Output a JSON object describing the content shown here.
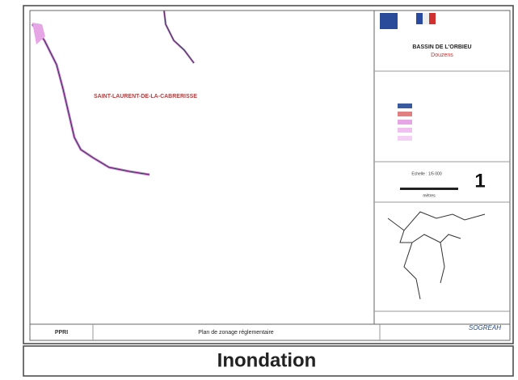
{
  "header": {
    "title": "BASSIN DE L'ORBIEU",
    "subtitle": "Douzens"
  },
  "map": {
    "place_label": "SAINT-LAURENT-DE-LA-CABRERISSE"
  },
  "scale": {
    "label": "Echelle : 1/5 000",
    "number": "1",
    "unit": "mètres"
  },
  "footer": {
    "code": "PPRI",
    "caption": "Plan de zonage réglementaire",
    "company": "SOGREAH"
  },
  "banner": {
    "title": "Inondation"
  }
}
